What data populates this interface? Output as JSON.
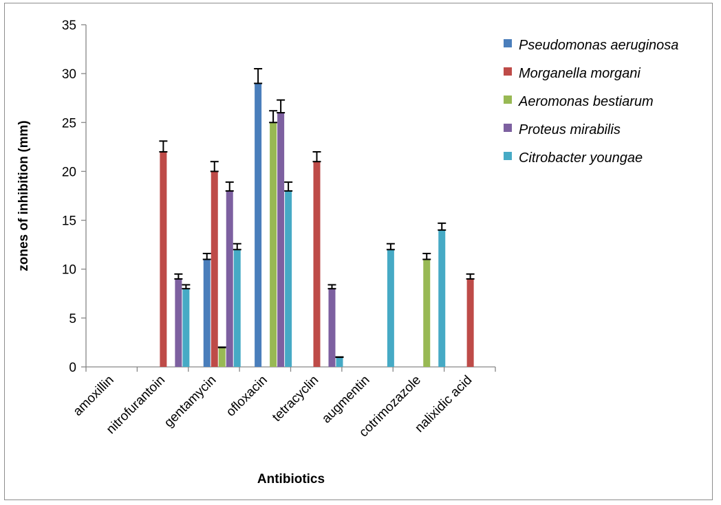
{
  "chart_data": {
    "type": "bar",
    "xlabel": "Antibiotics",
    "ylabel": "zones of inhibition (mm)",
    "ylim": [
      0,
      35
    ],
    "yticks": [
      0,
      5,
      10,
      15,
      20,
      25,
      30,
      35
    ],
    "grid": false,
    "legend_position": "right",
    "categories": [
      "amoxillin",
      "nitrofurantoin",
      "gentamycin",
      "ofloxacin",
      "tetracyclin",
      "augmentin",
      "cotrimozazole",
      "nalixidic acid"
    ],
    "series": [
      {
        "name": "Pseudomonas aeruginosa",
        "color": "#4a7ebb",
        "values": [
          0,
          0,
          11,
          29,
          0,
          0,
          0,
          0
        ],
        "errors": [
          0,
          0,
          0.6,
          1.5,
          0,
          0,
          0,
          0
        ]
      },
      {
        "name": "Morganella morgani",
        "color": "#be4b48",
        "values": [
          0,
          22,
          20,
          0,
          21,
          0,
          0,
          9
        ],
        "errors": [
          0,
          1.1,
          1.0,
          0,
          1.0,
          0,
          0,
          0.5
        ]
      },
      {
        "name": "Aeromonas bestiarum",
        "color": "#98b954",
        "values": [
          0,
          0,
          2,
          25,
          0,
          0,
          11,
          0
        ],
        "errors": [
          0,
          0,
          0,
          1.2,
          0,
          0,
          0.6,
          0
        ]
      },
      {
        "name": "Proteus mirabilis",
        "color": "#7d60a0",
        "values": [
          0,
          9,
          18,
          26,
          8,
          0,
          0,
          0
        ],
        "errors": [
          0,
          0.5,
          0.9,
          1.3,
          0.4,
          0,
          0,
          0
        ]
      },
      {
        "name": "Citrobacter youngae",
        "color": "#46aac5",
        "values": [
          0,
          8,
          12,
          18,
          1,
          12,
          14,
          0
        ],
        "errors": [
          0,
          0.4,
          0.6,
          0.9,
          0,
          0.6,
          0.7,
          0
        ]
      }
    ]
  }
}
